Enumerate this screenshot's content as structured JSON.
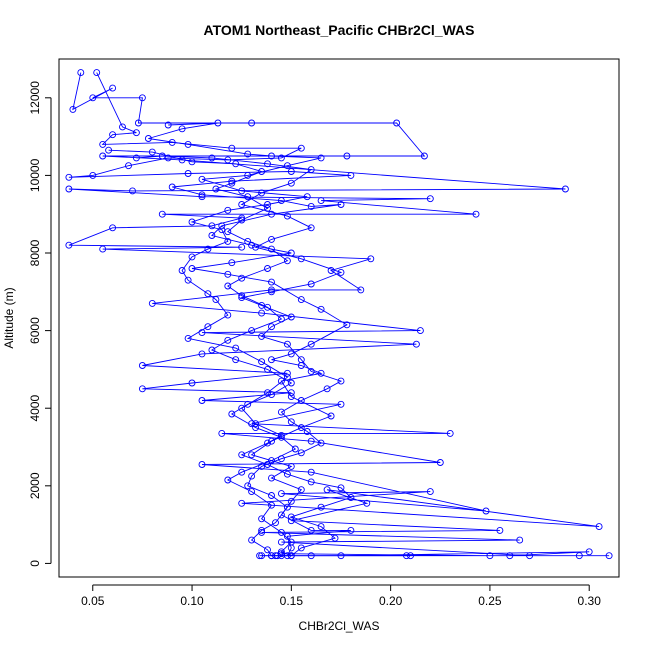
{
  "chart_data": {
    "type": "line",
    "title": "ATOM1 Northeast_Pacific CHBr2Cl_WAS",
    "xlabel": "CHBr2Cl_WAS",
    "ylabel": "Altitude (m)",
    "xlim": [
      0.033,
      0.315
    ],
    "ylim": [
      -350,
      13000
    ],
    "x_ticks": [
      0.05,
      0.1,
      0.15,
      0.2,
      0.25,
      0.3
    ],
    "x_tick_labels": [
      "0.05",
      "0.10",
      "0.15",
      "0.20",
      "0.25",
      "0.30"
    ],
    "y_ticks": [
      0,
      2000,
      4000,
      6000,
      8000,
      10000,
      12000
    ],
    "y_tick_labels": [
      "0",
      "2000",
      "4000",
      "6000",
      "8000",
      "10000",
      "12000"
    ],
    "grid": false,
    "legend": "none",
    "line_color": "#0000ff",
    "marker": "open-circle",
    "series": [
      {
        "values": [
          [
            0.044,
            12650
          ],
          [
            0.04,
            11700
          ],
          [
            0.06,
            12250
          ],
          [
            0.05,
            12000
          ],
          [
            0.075,
            12000
          ],
          [
            0.073,
            11350
          ],
          [
            0.13,
            11350
          ],
          [
            0.203,
            11350
          ],
          [
            0.217,
            10500
          ],
          [
            0.178,
            10500
          ],
          [
            0.055,
            10500
          ],
          [
            0.095,
            10400
          ],
          [
            0.288,
            9650
          ],
          [
            0.07,
            9600
          ],
          [
            0.038,
            9650
          ],
          [
            0.105,
            9450
          ],
          [
            0.22,
            9400
          ],
          [
            0.165,
            9350
          ],
          [
            0.243,
            9000
          ],
          [
            0.085,
            9000
          ],
          [
            0.125,
            8900
          ],
          [
            0.11,
            8700
          ],
          [
            0.06,
            8650
          ],
          [
            0.038,
            8200
          ],
          [
            0.125,
            8150
          ],
          [
            0.055,
            8100
          ],
          [
            0.19,
            7850
          ],
          [
            0.17,
            7550
          ],
          [
            0.185,
            7050
          ],
          [
            0.14,
            7050
          ],
          [
            0.08,
            6700
          ],
          [
            0.135,
            6450
          ],
          [
            0.215,
            6000
          ],
          [
            0.105,
            5950
          ],
          [
            0.213,
            5650
          ],
          [
            0.105,
            5400
          ],
          [
            0.075,
            5100
          ],
          [
            0.148,
            4900
          ],
          [
            0.1,
            4650
          ],
          [
            0.075,
            4500
          ],
          [
            0.15,
            4400
          ],
          [
            0.105,
            4200
          ],
          [
            0.175,
            4100
          ],
          [
            0.13,
            3600
          ],
          [
            0.23,
            3350
          ],
          [
            0.115,
            3350
          ],
          [
            0.16,
            3150
          ],
          [
            0.225,
            2600
          ],
          [
            0.105,
            2550
          ],
          [
            0.16,
            2350
          ],
          [
            0.248,
            1350
          ],
          [
            0.145,
            1800
          ],
          [
            0.22,
            1850
          ],
          [
            0.125,
            1550
          ],
          [
            0.305,
            950
          ],
          [
            0.168,
            1900
          ],
          [
            0.188,
            1550
          ],
          [
            0.15,
            1100
          ],
          [
            0.255,
            850
          ],
          [
            0.135,
            800
          ],
          [
            0.265,
            600
          ],
          [
            0.145,
            550
          ],
          [
            0.27,
            200
          ],
          [
            0.208,
            200
          ],
          [
            0.14,
            200
          ],
          [
            0.31,
            200
          ],
          [
            0.295,
            200
          ],
          [
            0.26,
            200
          ],
          [
            0.3,
            300
          ],
          [
            0.175,
            200
          ],
          [
            0.25,
            200
          ],
          [
            0.145,
            250
          ]
        ]
      },
      {
        "values": [
          [
            0.052,
            12650
          ],
          [
            0.065,
            11250
          ],
          [
            0.072,
            11100
          ],
          [
            0.06,
            11050
          ],
          [
            0.055,
            10800
          ],
          [
            0.09,
            10850
          ],
          [
            0.12,
            10700
          ],
          [
            0.155,
            10700
          ],
          [
            0.145,
            10450
          ],
          [
            0.118,
            10400
          ],
          [
            0.088,
            10450
          ],
          [
            0.068,
            10250
          ],
          [
            0.05,
            10000
          ],
          [
            0.038,
            9950
          ],
          [
            0.098,
            10050
          ],
          [
            0.15,
            10100
          ],
          [
            0.18,
            10000
          ],
          [
            0.12,
            9850
          ],
          [
            0.09,
            9700
          ],
          [
            0.105,
            9500
          ],
          [
            0.145,
            9350
          ],
          [
            0.16,
            9200
          ],
          [
            0.175,
            9250
          ],
          [
            0.14,
            9000
          ],
          [
            0.115,
            8700
          ],
          [
            0.11,
            8450
          ],
          [
            0.13,
            8200
          ],
          [
            0.15,
            8000
          ],
          [
            0.12,
            7750
          ],
          [
            0.1,
            7600
          ],
          [
            0.118,
            7450
          ],
          [
            0.14,
            7250
          ],
          [
            0.155,
            6800
          ],
          [
            0.165,
            6550
          ],
          [
            0.178,
            6150
          ],
          [
            0.16,
            5650
          ],
          [
            0.15,
            5400
          ],
          [
            0.14,
            5250
          ],
          [
            0.155,
            5100
          ],
          [
            0.165,
            4900
          ],
          [
            0.145,
            4700
          ],
          [
            0.15,
            4300
          ],
          [
            0.17,
            3800
          ],
          [
            0.155,
            3500
          ],
          [
            0.14,
            3150
          ],
          [
            0.13,
            2800
          ],
          [
            0.15,
            2500
          ],
          [
            0.14,
            2200
          ],
          [
            0.155,
            1900
          ],
          [
            0.15,
            1600
          ],
          [
            0.145,
            1250
          ],
          [
            0.16,
            850
          ],
          [
            0.18,
            850
          ],
          [
            0.148,
            700
          ],
          [
            0.15,
            400
          ],
          [
            0.148,
            200
          ],
          [
            0.143,
            200
          ],
          [
            0.134,
            200
          ],
          [
            0.21,
            200
          ],
          [
            0.16,
            200
          ]
        ]
      },
      {
        "values": [
          [
            0.088,
            11300
          ],
          [
            0.113,
            11350
          ],
          [
            0.095,
            11200
          ],
          [
            0.078,
            10950
          ],
          [
            0.098,
            10800
          ],
          [
            0.128,
            10550
          ],
          [
            0.14,
            10500
          ],
          [
            0.165,
            10450
          ],
          [
            0.148,
            10250
          ],
          [
            0.128,
            10000
          ],
          [
            0.105,
            9900
          ],
          [
            0.125,
            9600
          ],
          [
            0.158,
            9450
          ],
          [
            0.138,
            9250
          ],
          [
            0.118,
            9100
          ],
          [
            0.1,
            8800
          ],
          [
            0.115,
            8600
          ],
          [
            0.118,
            8300
          ],
          [
            0.108,
            8100
          ],
          [
            0.1,
            7900
          ],
          [
            0.095,
            7550
          ],
          [
            0.098,
            7300
          ],
          [
            0.108,
            6950
          ],
          [
            0.112,
            6800
          ],
          [
            0.118,
            6400
          ],
          [
            0.108,
            6100
          ],
          [
            0.098,
            5800
          ],
          [
            0.122,
            5550
          ],
          [
            0.135,
            5200
          ],
          [
            0.148,
            4800
          ],
          [
            0.138,
            4400
          ],
          [
            0.125,
            4000
          ],
          [
            0.132,
            3600
          ],
          [
            0.145,
            3300
          ],
          [
            0.138,
            3100
          ],
          [
            0.125,
            2800
          ],
          [
            0.138,
            2550
          ],
          [
            0.148,
            2300
          ],
          [
            0.16,
            2100
          ],
          [
            0.175,
            1950
          ],
          [
            0.18,
            1700
          ],
          [
            0.165,
            1450
          ],
          [
            0.15,
            1200
          ],
          [
            0.165,
            950
          ],
          [
            0.172,
            650
          ],
          [
            0.155,
            400
          ],
          [
            0.15,
            200
          ],
          [
            0.145,
            200
          ]
        ]
      },
      {
        "values": [
          [
            0.072,
            10450
          ],
          [
            0.085,
            10500
          ],
          [
            0.11,
            10450
          ],
          [
            0.138,
            10300
          ],
          [
            0.16,
            10150
          ],
          [
            0.15,
            9800
          ],
          [
            0.135,
            9550
          ],
          [
            0.125,
            9250
          ],
          [
            0.148,
            8950
          ],
          [
            0.16,
            8650
          ],
          [
            0.14,
            8350
          ],
          [
            0.132,
            8150
          ],
          [
            0.155,
            7850
          ],
          [
            0.175,
            7500
          ],
          [
            0.16,
            7200
          ],
          [
            0.14,
            7000
          ],
          [
            0.125,
            6850
          ],
          [
            0.135,
            6650
          ],
          [
            0.15,
            6350
          ],
          [
            0.14,
            6100
          ],
          [
            0.135,
            5850
          ],
          [
            0.148,
            5650
          ],
          [
            0.155,
            5250
          ],
          [
            0.16,
            4950
          ],
          [
            0.175,
            4700
          ],
          [
            0.168,
            4500
          ],
          [
            0.155,
            4200
          ],
          [
            0.145,
            3900
          ],
          [
            0.15,
            3650
          ],
          [
            0.158,
            3400
          ],
          [
            0.165,
            3100
          ],
          [
            0.155,
            2850
          ],
          [
            0.145,
            2700
          ],
          [
            0.135,
            2500
          ],
          [
            0.13,
            2250
          ],
          [
            0.128,
            2000
          ],
          [
            0.14,
            1750
          ],
          [
            0.148,
            1450
          ],
          [
            0.142,
            1050
          ],
          [
            0.135,
            850
          ],
          [
            0.13,
            600
          ],
          [
            0.138,
            350
          ],
          [
            0.14,
            200
          ],
          [
            0.142,
            200
          ]
        ]
      },
      {
        "values": [
          [
            0.058,
            10650
          ],
          [
            0.08,
            10600
          ],
          [
            0.1,
            10350
          ],
          [
            0.122,
            10300
          ],
          [
            0.135,
            10100
          ],
          [
            0.12,
            9800
          ],
          [
            0.112,
            9650
          ],
          [
            0.128,
            9450
          ],
          [
            0.138,
            9150
          ],
          [
            0.125,
            8850
          ],
          [
            0.118,
            8550
          ],
          [
            0.128,
            8300
          ],
          [
            0.14,
            8100
          ],
          [
            0.148,
            7800
          ],
          [
            0.138,
            7600
          ],
          [
            0.125,
            7350
          ],
          [
            0.118,
            7150
          ],
          [
            0.125,
            6900
          ],
          [
            0.138,
            6600
          ],
          [
            0.145,
            6300
          ],
          [
            0.13,
            6000
          ],
          [
            0.118,
            5750
          ],
          [
            0.11,
            5500
          ],
          [
            0.122,
            5250
          ],
          [
            0.138,
            5000
          ],
          [
            0.15,
            4650
          ],
          [
            0.14,
            4350
          ],
          [
            0.128,
            4100
          ],
          [
            0.12,
            3850
          ],
          [
            0.132,
            3500
          ],
          [
            0.145,
            3250
          ],
          [
            0.152,
            2950
          ],
          [
            0.14,
            2650
          ],
          [
            0.125,
            2350
          ],
          [
            0.118,
            2150
          ],
          [
            0.13,
            1850
          ],
          [
            0.14,
            1500
          ],
          [
            0.135,
            1150
          ],
          [
            0.145,
            800
          ],
          [
            0.15,
            550
          ],
          [
            0.145,
            300
          ],
          [
            0.15,
            200
          ],
          [
            0.135,
            200
          ]
        ]
      }
    ]
  }
}
